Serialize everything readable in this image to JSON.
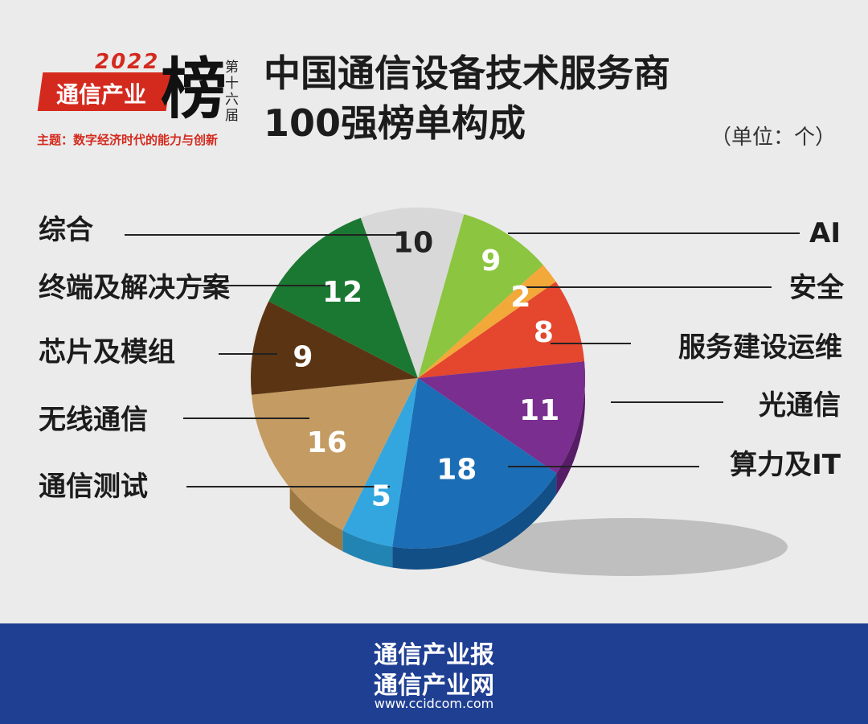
{
  "logo": {
    "year": "2022",
    "name": "通信产业",
    "big_char": "榜",
    "edition": "第十六届",
    "theme": "主题：数字经济时代的能力与创新"
  },
  "title_line1": "中国通信设备技术服务商",
  "title_line2": "100强榜单构成",
  "unit": "（单位：个）",
  "chart_data": {
    "type": "pie",
    "title": "中国通信设备技术服务商100强榜单构成",
    "unit": "个",
    "categories": [
      "AI",
      "安全",
      "服务建设运维",
      "光通信",
      "算力及IT",
      "通信测试",
      "无线通信",
      "芯片及模组",
      "终端及解决方案",
      "综合"
    ],
    "values": [
      9,
      2,
      8,
      11,
      18,
      5,
      16,
      9,
      12,
      10
    ],
    "colors": [
      "#8cc540",
      "#f3a83a",
      "#e4462e",
      "#7a2e8f",
      "#1b6db5",
      "#33a6df",
      "#c49b62",
      "#5b3513",
      "#1b7832",
      "#d8d8d8"
    ],
    "side_colors": [
      "#6c9a2e",
      "#c9841f",
      "#b0281a",
      "#561c66",
      "#124f86",
      "#2284b3",
      "#9c7843",
      "#3c220a",
      "#10561f",
      "#b0b0b0"
    ],
    "legend": "labels with leader lines"
  },
  "footer": {
    "line1": "通信产业报",
    "line2": "通信产业网",
    "url": "www.ccidcom.com"
  }
}
